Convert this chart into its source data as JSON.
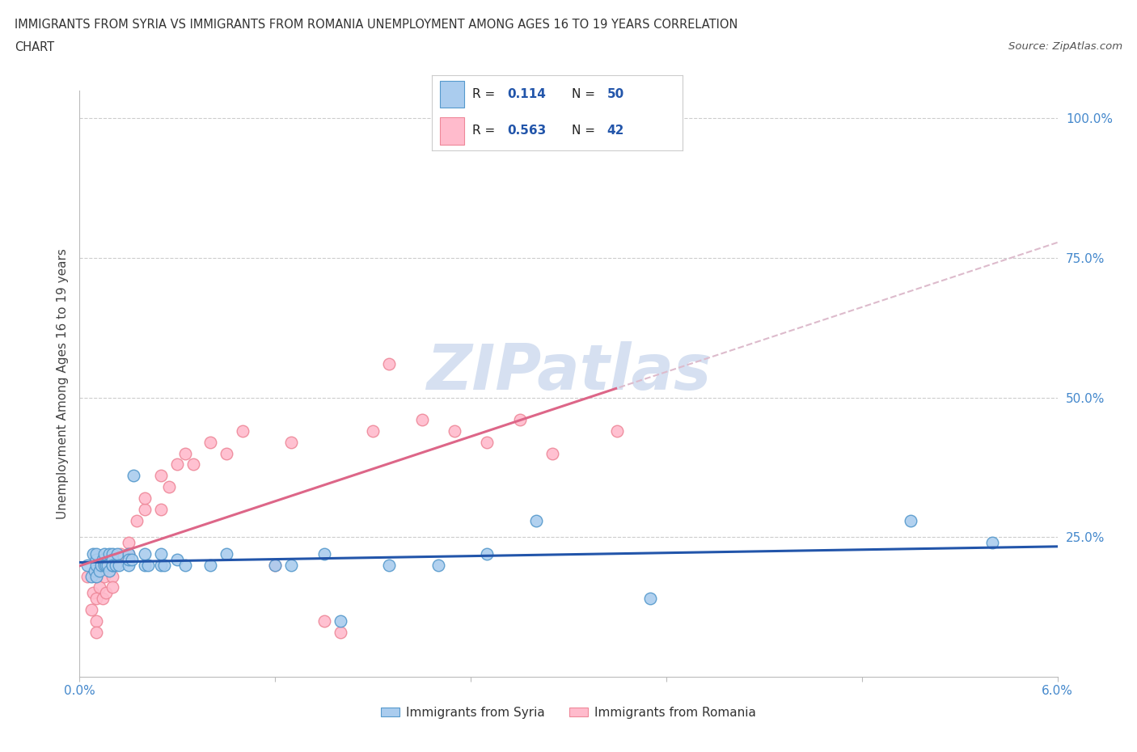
{
  "title_line1": "IMMIGRANTS FROM SYRIA VS IMMIGRANTS FROM ROMANIA UNEMPLOYMENT AMONG AGES 16 TO 19 YEARS CORRELATION",
  "title_line2": "CHART",
  "source_text": "Source: ZipAtlas.com",
  "ylabel": "Unemployment Among Ages 16 to 19 years",
  "xlim": [
    0.0,
    0.06
  ],
  "ylim": [
    0.0,
    1.05
  ],
  "xtick_labels": [
    "0.0%",
    "",
    "",
    "",
    "",
    "6.0%"
  ],
  "xtick_values": [
    0.0,
    0.012,
    0.024,
    0.036,
    0.048,
    0.06
  ],
  "ytick_labels": [
    "25.0%",
    "50.0%",
    "75.0%",
    "100.0%"
  ],
  "ytick_values": [
    0.25,
    0.5,
    0.75,
    1.0
  ],
  "syria_color": "#aaccee",
  "syria_edge_color": "#5599cc",
  "romania_color": "#ffbbcc",
  "romania_edge_color": "#ee8899",
  "syria_R": "0.114",
  "syria_N": "50",
  "romania_R": "0.563",
  "romania_N": "42",
  "trendline_syria_color": "#2255aa",
  "trendline_romania_color": "#dd6688",
  "trendline_dashed_color": "#ddbbcc",
  "watermark": "ZIPatlas",
  "watermark_color": "#bbcce8",
  "background_color": "#ffffff",
  "syria_x": [
    0.0005,
    0.0007,
    0.0008,
    0.0009,
    0.001,
    0.001,
    0.001,
    0.001,
    0.0012,
    0.0013,
    0.0014,
    0.0015,
    0.0015,
    0.0016,
    0.0017,
    0.0018,
    0.0018,
    0.002,
    0.002,
    0.002,
    0.002,
    0.0022,
    0.0023,
    0.0024,
    0.003,
    0.003,
    0.003,
    0.0032,
    0.0033,
    0.004,
    0.004,
    0.0042,
    0.005,
    0.005,
    0.0052,
    0.006,
    0.0065,
    0.008,
    0.009,
    0.012,
    0.013,
    0.015,
    0.016,
    0.019,
    0.022,
    0.025,
    0.028,
    0.035,
    0.051,
    0.056
  ],
  "syria_y": [
    0.2,
    0.18,
    0.22,
    0.19,
    0.21,
    0.2,
    0.18,
    0.22,
    0.19,
    0.2,
    0.21,
    0.2,
    0.22,
    0.2,
    0.2,
    0.22,
    0.19,
    0.2,
    0.22,
    0.21,
    0.2,
    0.2,
    0.22,
    0.2,
    0.2,
    0.22,
    0.21,
    0.21,
    0.36,
    0.2,
    0.22,
    0.2,
    0.2,
    0.22,
    0.2,
    0.21,
    0.2,
    0.2,
    0.22,
    0.2,
    0.2,
    0.22,
    0.1,
    0.2,
    0.2,
    0.22,
    0.28,
    0.14,
    0.28,
    0.24
  ],
  "romania_x": [
    0.0005,
    0.0007,
    0.0008,
    0.001,
    0.001,
    0.001,
    0.001,
    0.0012,
    0.0014,
    0.0015,
    0.0016,
    0.0017,
    0.002,
    0.002,
    0.002,
    0.0025,
    0.003,
    0.003,
    0.0035,
    0.004,
    0.004,
    0.005,
    0.005,
    0.0055,
    0.006,
    0.0065,
    0.007,
    0.008,
    0.009,
    0.01,
    0.012,
    0.013,
    0.015,
    0.016,
    0.018,
    0.019,
    0.021,
    0.023,
    0.025,
    0.027,
    0.029,
    0.033
  ],
  "romania_y": [
    0.18,
    0.12,
    0.15,
    0.18,
    0.14,
    0.1,
    0.08,
    0.16,
    0.14,
    0.18,
    0.15,
    0.2,
    0.18,
    0.2,
    0.16,
    0.22,
    0.24,
    0.22,
    0.28,
    0.3,
    0.32,
    0.3,
    0.36,
    0.34,
    0.38,
    0.4,
    0.38,
    0.42,
    0.4,
    0.44,
    0.2,
    0.42,
    0.1,
    0.08,
    0.44,
    0.56,
    0.46,
    0.44,
    0.42,
    0.46,
    0.4,
    0.44
  ]
}
